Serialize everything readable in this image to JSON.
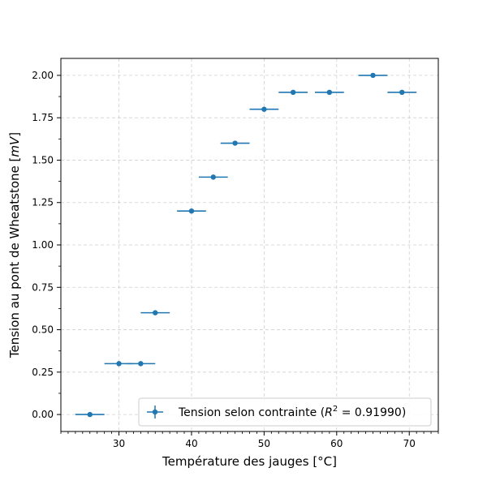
{
  "chart_data": {
    "type": "scatter",
    "title": "",
    "xlabel": "Température des jauges [°C]",
    "ylabel": "Tension au pont de Wheatstone [mV]",
    "ylabel_parts": {
      "pre": "Tension au pont de Wheatstone [",
      "unit": "mV",
      "post": "]"
    },
    "xlim": [
      22,
      74
    ],
    "ylim": [
      -0.1,
      2.1
    ],
    "xticks": [
      30,
      40,
      50,
      60,
      70
    ],
    "xtick_labels": [
      "30",
      "40",
      "50",
      "60",
      "70"
    ],
    "yticks": [
      0.0,
      0.25,
      0.5,
      0.75,
      1.0,
      1.25,
      1.5,
      1.75,
      2.0
    ],
    "ytick_labels": [
      "0.00",
      "0.25",
      "0.50",
      "0.75",
      "1.00",
      "1.25",
      "1.50",
      "1.75",
      "2.00"
    ],
    "x_minor_step": 1,
    "y_minor_step": 0.125,
    "grid": true,
    "legend_position": "lower-right",
    "series": [
      {
        "name": "Tension selon contrainte",
        "legend_r2_value": "0.91990",
        "color": "#1f77b4",
        "x": [
          26,
          30,
          33,
          35,
          40,
          43,
          46,
          50,
          54,
          59,
          65,
          69
        ],
        "y": [
          0.0,
          0.3,
          0.3,
          0.6,
          1.2,
          1.4,
          1.6,
          1.8,
          1.9,
          1.9,
          2.0,
          1.9
        ],
        "xerr": 2
      }
    ]
  }
}
